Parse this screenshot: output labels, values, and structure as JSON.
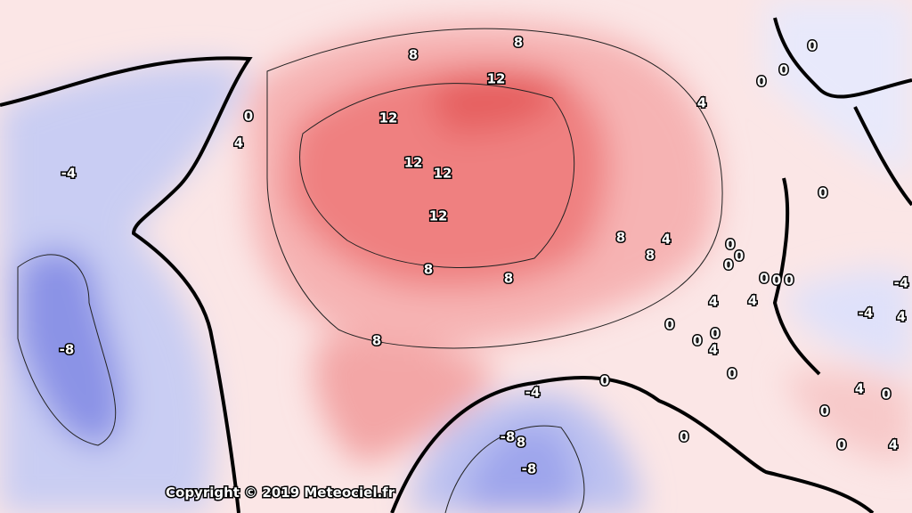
{
  "map": {
    "contour_labels": [
      "8",
      "8",
      "12",
      "0",
      "4",
      "12",
      "12",
      "12",
      "12",
      "-4",
      "-8",
      "8",
      "8",
      "8",
      "8",
      "4",
      "8",
      "0",
      "0",
      "0",
      "4",
      "0",
      "0",
      "0",
      "0",
      "0",
      "0",
      "0",
      "4",
      "4",
      "0",
      "0",
      "0",
      "4",
      "-4",
      "-4",
      "4",
      "0",
      "-4",
      "0",
      "4",
      "0",
      "0",
      "0",
      "0",
      "4",
      "-8",
      "8",
      "-8"
    ],
    "copyright": "Copyright © 2019 Meteociel.fr"
  }
}
